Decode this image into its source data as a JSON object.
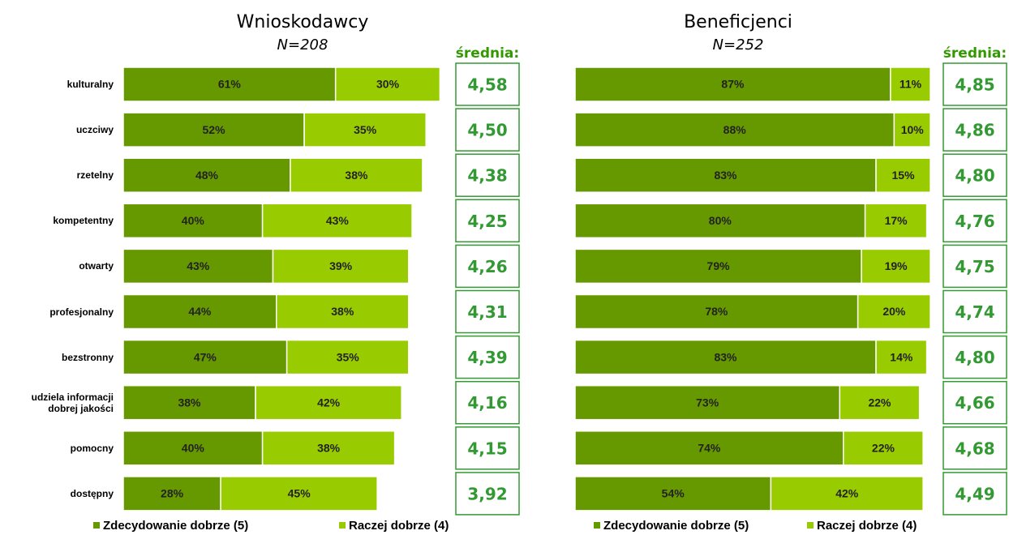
{
  "chart_data": [
    {
      "type": "bar",
      "orientation": "horizontal",
      "stacked": true,
      "title": "Wnioskodawcy",
      "subtitle": "N=208",
      "categories": [
        "kulturalny",
        "uczciwy",
        "rzetelny",
        "kompetentny",
        "otwarty",
        "profesjonalny",
        "bezstronny",
        "udziela informacji\ndobrej jakości",
        "pomocny",
        "dostępny"
      ],
      "series": [
        {
          "name": "Zdecydowanie dobrze (5)",
          "color": "#669900",
          "values": [
            61,
            52,
            48,
            40,
            43,
            44,
            47,
            38,
            40,
            28
          ],
          "value_labels": [
            "61%",
            "52%",
            "48%",
            "40%",
            "43%",
            "44%",
            "47%",
            "38%",
            "40%",
            "28%"
          ]
        },
        {
          "name": "Raczej dobrze (4)",
          "color": "#99cc00",
          "values": [
            30,
            35,
            38,
            43,
            39,
            38,
            35,
            42,
            38,
            45
          ],
          "value_labels": [
            "30%",
            "35%",
            "38%",
            "43%",
            "39%",
            "38%",
            "35%",
            "42%",
            "38%",
            "45%"
          ]
        }
      ],
      "mean_title": "średnia:",
      "means": [
        4.58,
        4.5,
        4.38,
        4.25,
        4.26,
        4.31,
        4.39,
        4.16,
        4.15,
        3.92
      ],
      "mean_labels": [
        "4,58",
        "4,50",
        "4,38",
        "4,25",
        "4,26",
        "4,31",
        "4,39",
        "4,16",
        "4,15",
        "3,92"
      ]
    },
    {
      "type": "bar",
      "orientation": "horizontal",
      "stacked": true,
      "title": "Beneficjenci",
      "subtitle": "N=252",
      "series": [
        {
          "name": "Zdecydowanie dobrze (5)",
          "color": "#669900",
          "values": [
            87,
            88,
            83,
            80,
            79,
            78,
            83,
            73,
            74,
            54
          ],
          "value_labels": [
            "87%",
            "88%",
            "83%",
            "80%",
            "79%",
            "78%",
            "83%",
            "73%",
            "74%",
            "54%"
          ]
        },
        {
          "name": "Raczej dobrze (4)",
          "color": "#99cc00",
          "values": [
            11,
            10,
            15,
            17,
            19,
            20,
            14,
            22,
            22,
            42
          ],
          "value_labels": [
            "11%",
            "10%",
            "15%",
            "17%",
            "19%",
            "20%",
            "14%",
            "22%",
            "22%",
            "42%"
          ]
        }
      ],
      "mean_title": "średnia:",
      "means": [
        4.85,
        4.86,
        4.8,
        4.76,
        4.75,
        4.74,
        4.8,
        4.66,
        4.68,
        4.49
      ],
      "mean_labels": [
        "4,85",
        "4,86",
        "4,80",
        "4,76",
        "4,75",
        "4,74",
        "4,80",
        "4,66",
        "4,68",
        "4,49"
      ]
    }
  ]
}
